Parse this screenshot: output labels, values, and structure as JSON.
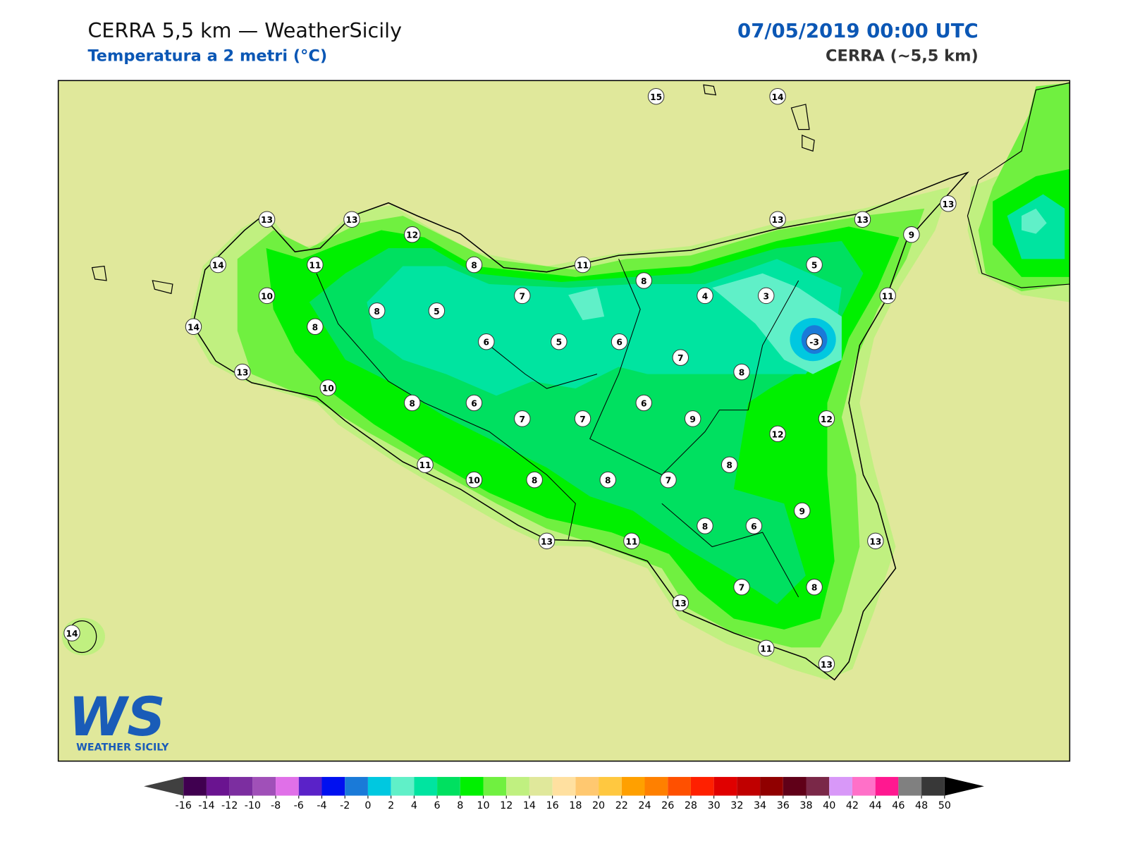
{
  "header": {
    "title": "CERRA 5,5 km — WeatherSicily",
    "subtitle": "Temperatura a 2 metri (°C)",
    "date": "07/05/2019 00:00 UTC",
    "model": "CERRA (~5,5 km)"
  },
  "logo": {
    "mark": "WS",
    "text": "WEATHER SICILY"
  },
  "stations": [
    15,
    14,
    13,
    13,
    12,
    13,
    13,
    13,
    9,
    14,
    11,
    8,
    11,
    8,
    5,
    10,
    7,
    4,
    3,
    11,
    8,
    5,
    14,
    8,
    6,
    5,
    6,
    -3,
    7,
    13,
    8,
    10,
    8,
    6,
    6,
    7,
    7,
    9,
    12,
    12,
    8,
    11,
    10,
    8,
    8,
    7,
    9,
    8,
    6,
    13,
    11,
    13,
    7,
    8,
    13,
    14,
    11,
    13
  ],
  "colorbar": {
    "ticks": [
      -16,
      -14,
      -12,
      -10,
      -8,
      -6,
      -4,
      -2,
      0,
      2,
      4,
      6,
      8,
      10,
      12,
      14,
      16,
      18,
      20,
      22,
      24,
      26,
      28,
      30,
      32,
      34,
      36,
      38,
      40,
      42,
      44,
      46,
      48,
      50
    ],
    "colors": [
      "#400050",
      "#6a1490",
      "#7c2ea0",
      "#a050b8",
      "#e070e8",
      "#5a22c8",
      "#0010f0",
      "#1a7ad8",
      "#00c8e0",
      "#60f0c8",
      "#00e4a0",
      "#00e060",
      "#00f000",
      "#70f040",
      "#c0f080",
      "#e0e89b",
      "#ffe0a0",
      "#ffc870",
      "#ffc840",
      "#ffa000",
      "#ff8000",
      "#ff5000",
      "#ff2000",
      "#e00000",
      "#c00000",
      "#900000",
      "#600018",
      "#7a2848",
      "#d898f8",
      "#ff70c8",
      "#ff1890",
      "#808080",
      "#383838"
    ],
    "under_color": "#404040",
    "over_color": "#000000"
  }
}
